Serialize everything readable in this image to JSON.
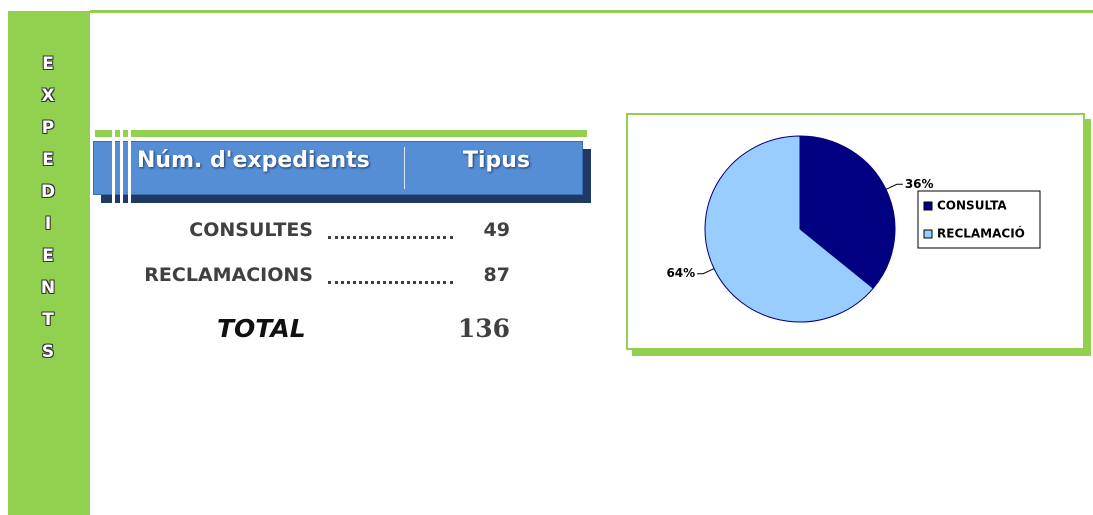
{
  "sidebar": {
    "title": "EXPEDIENTS"
  },
  "table": {
    "header": [
      "Núm. d'expedients",
      "Tipus"
    ],
    "rows": [
      [
        "CONSULTES",
        49
      ],
      [
        "RECLAMACIONS",
        87
      ]
    ],
    "total": {
      "label": "TOTAL",
      "value": 136
    }
  },
  "chart_data": {
    "type": "pie",
    "categories": [
      "CONSULTA",
      "RECLAMACIÓ"
    ],
    "values": [
      36,
      64
    ],
    "value_labels": [
      "36%",
      "64%"
    ],
    "colors": [
      "#000080",
      "#99ccff"
    ],
    "legend": "right"
  }
}
